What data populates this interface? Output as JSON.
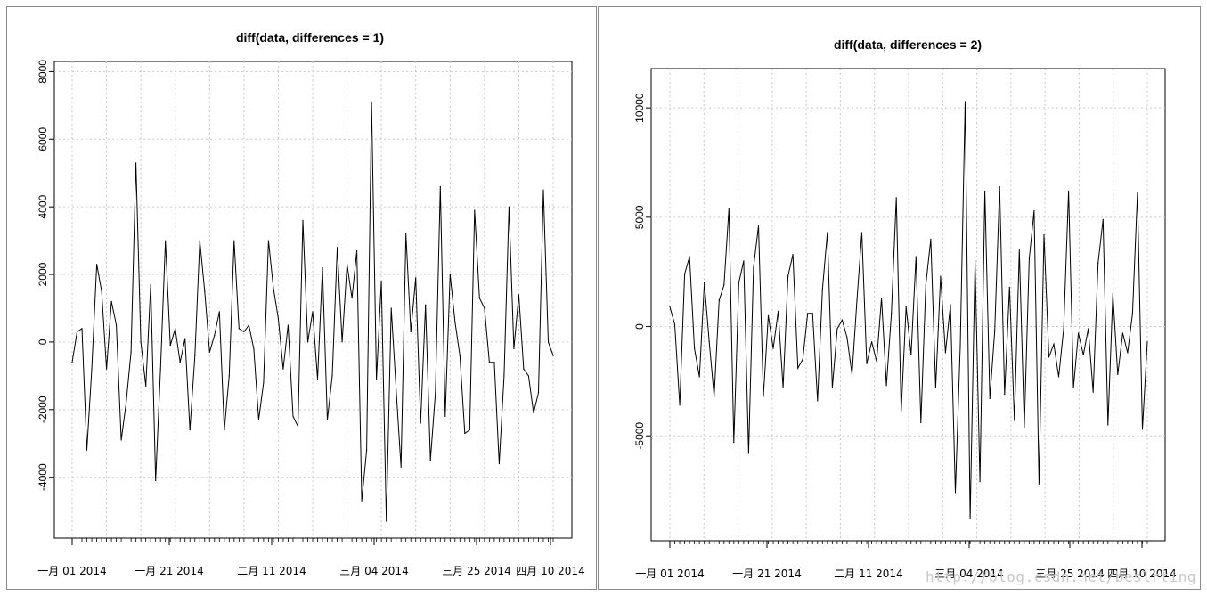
{
  "chart_data": [
    {
      "type": "line",
      "title": "diff(data, differences = 1)",
      "xlabel": "",
      "ylabel": "",
      "ylim": [
        -5800,
        8300
      ],
      "yticks": [
        -4000,
        -2000,
        0,
        2000,
        4000,
        6000,
        8000
      ],
      "ytick_labels": [
        "-4000",
        "-2000",
        "0",
        "2000",
        "4000",
        "6000",
        "8000"
      ],
      "x_tick_labels": [
        "一月 01 2014",
        "一月 21 2014",
        "二月 11 2014",
        "三月 04 2014",
        "三月 25 2014",
        "四月 10 2014"
      ],
      "grid": true,
      "series": [
        {
          "values": [
            -600,
            300,
            400,
            -3200,
            -800,
            2300,
            1500,
            -800,
            1200,
            500,
            -2900,
            -1800,
            -300,
            5300,
            0,
            -1300,
            1700,
            -4100,
            -800,
            3000,
            -100,
            400,
            -600,
            100,
            -2600,
            -400,
            3000,
            1500,
            -300,
            200,
            900,
            -2600,
            -1000,
            3000,
            400,
            300,
            500,
            -200,
            -2300,
            -1200,
            3000,
            1600,
            700,
            -800,
            500,
            -2200,
            -2500,
            3600,
            0,
            900,
            -1100,
            2200,
            -2300,
            -1000,
            2800,
            0,
            2300,
            1300,
            2700,
            -4700,
            -3200,
            7100,
            -1100,
            1800,
            -5300,
            1000,
            -1400,
            -3700,
            3200,
            300,
            1900,
            -2400,
            1100,
            -3500,
            -1500,
            4600,
            -2200,
            2000,
            600,
            -400,
            -2700,
            -2600,
            3900,
            1300,
            1000,
            -600,
            -600,
            -3600,
            -1000,
            4000,
            -200,
            1400,
            -800,
            -1000,
            -2100,
            -1500,
            4500,
            0,
            -400
          ]
        }
      ]
    },
    {
      "type": "line",
      "title": "diff(data, differences = 2)",
      "xlabel": "",
      "ylabel": "",
      "ylim": [
        -9800,
        11800
      ],
      "yticks": [
        -5000,
        0,
        5000,
        10000
      ],
      "ytick_labels": [
        "-5000",
        "0",
        "5000",
        "10000"
      ],
      "x_tick_labels": [
        "一月 01 2014",
        "一月 21 2014",
        "二月 11 2014",
        "三月 04 2014",
        "三月 25 2014",
        "四月 10 2014"
      ],
      "grid": true,
      "series": [
        {
          "values": [
            900,
            100,
            -3600,
            2400,
            3200,
            -1000,
            -2300,
            2000,
            -700,
            -3200,
            1200,
            1900,
            5400,
            -5300,
            2000,
            3000,
            -5800,
            2700,
            4600,
            -3200,
            500,
            -1000,
            700,
            -2800,
            2300,
            3300,
            -1900,
            -1500,
            600,
            600,
            -3400,
            1700,
            4300,
            -2800,
            -100,
            300,
            -500,
            -2200,
            1200,
            4300,
            -1700,
            -700,
            -1600,
            1300,
            -2700,
            600,
            5900,
            -3900,
            900,
            -1300,
            3200,
            -4400,
            1900,
            4000,
            -2800,
            2300,
            -1200,
            1000,
            -7600,
            -900,
            10300,
            -8800,
            3000,
            -7100,
            6200,
            -3300,
            -200,
            6400,
            -3100,
            1800,
            -4300,
            3500,
            -4600,
            3100,
            5300,
            -7200,
            4200,
            -1400,
            -800,
            -2300,
            -100,
            6200,
            -2800,
            -300,
            -1300,
            -100,
            -3000,
            2900,
            4900,
            -4500,
            1500,
            -2200,
            -300,
            -1200,
            600,
            6100,
            -4700,
            -700
          ]
        }
      ]
    }
  ],
  "watermark": "http://blog.csdn.net/beslrting"
}
